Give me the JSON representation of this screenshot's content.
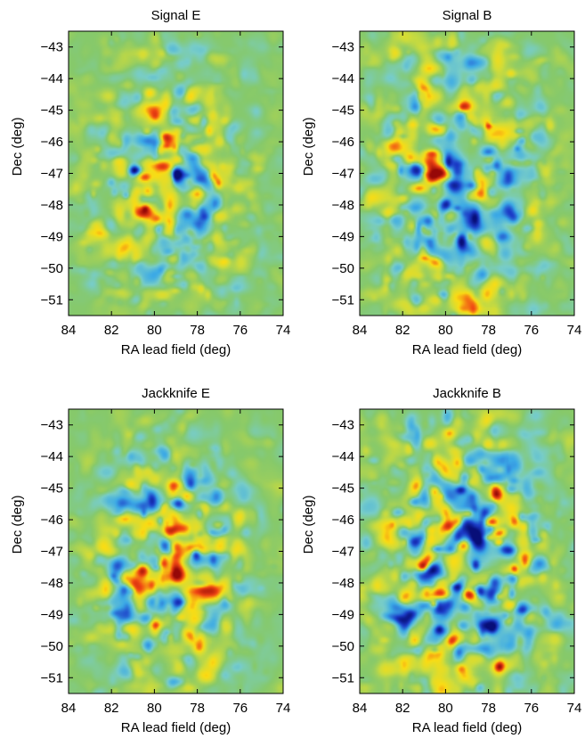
{
  "figure": {
    "colormap": "jet",
    "background_color": "#ffffff",
    "field_color": "#86c96b"
  },
  "chart_data": [
    {
      "type": "heatmap",
      "title": "Signal E",
      "xlabel": "RA lead field (deg)",
      "ylabel": "Dec (deg)",
      "xlim": [
        84,
        74
      ],
      "ylim": [
        -51.5,
        -42.5
      ],
      "xticks": [
        "84",
        "82",
        "80",
        "78",
        "76",
        "74"
      ],
      "yticks": [
        "-43",
        "-44",
        "-45",
        "-46",
        "-47",
        "-48",
        "-49",
        "-50",
        "-51"
      ],
      "field_center": [
        79.5,
        -47.5
      ],
      "field_radius_deg": [
        3.2,
        3.6
      ],
      "signal_strength": 1.0,
      "seed": 11
    },
    {
      "type": "heatmap",
      "title": "Signal B",
      "xlabel": "RA lead field (deg)",
      "ylabel": "Dec (deg)",
      "xlim": [
        84,
        74
      ],
      "ylim": [
        -51.5,
        -42.5
      ],
      "xticks": [
        "84",
        "82",
        "80",
        "78",
        "76",
        "74"
      ],
      "yticks": [
        "-43",
        "-44",
        "-45",
        "-46",
        "-47",
        "-48",
        "-49",
        "-50",
        "-51"
      ],
      "field_center": [
        79.5,
        -47.3
      ],
      "field_radius_deg": [
        3.6,
        3.9
      ],
      "signal_strength": 0.62,
      "seed": 23
    },
    {
      "type": "heatmap",
      "title": "Jackknife E",
      "xlabel": "RA lead field (deg)",
      "ylabel": "Dec (deg)",
      "xlim": [
        84,
        74
      ],
      "ylim": [
        -51.5,
        -42.5
      ],
      "xticks": [
        "84",
        "82",
        "80",
        "78",
        "76",
        "74"
      ],
      "yticks": [
        "-43",
        "-44",
        "-45",
        "-46",
        "-47",
        "-48",
        "-49",
        "-50",
        "-51"
      ],
      "field_center": [
        79.3,
        -47.5
      ],
      "field_radius_deg": [
        3.2,
        3.7
      ],
      "signal_strength": 0.62,
      "seed": 37
    },
    {
      "type": "heatmap",
      "title": "Jackknife B",
      "xlabel": "RA lead field (deg)",
      "ylabel": "Dec (deg)",
      "xlim": [
        84,
        74
      ],
      "ylim": [
        -51.5,
        -42.5
      ],
      "xticks": [
        "84",
        "82",
        "80",
        "78",
        "76",
        "74"
      ],
      "yticks": [
        "-43",
        "-44",
        "-45",
        "-46",
        "-47",
        "-48",
        "-49",
        "-50",
        "-51"
      ],
      "field_center": [
        79.3,
        -47.5
      ],
      "field_radius_deg": [
        3.3,
        3.7
      ],
      "signal_strength": 0.72,
      "seed": 53
    }
  ]
}
